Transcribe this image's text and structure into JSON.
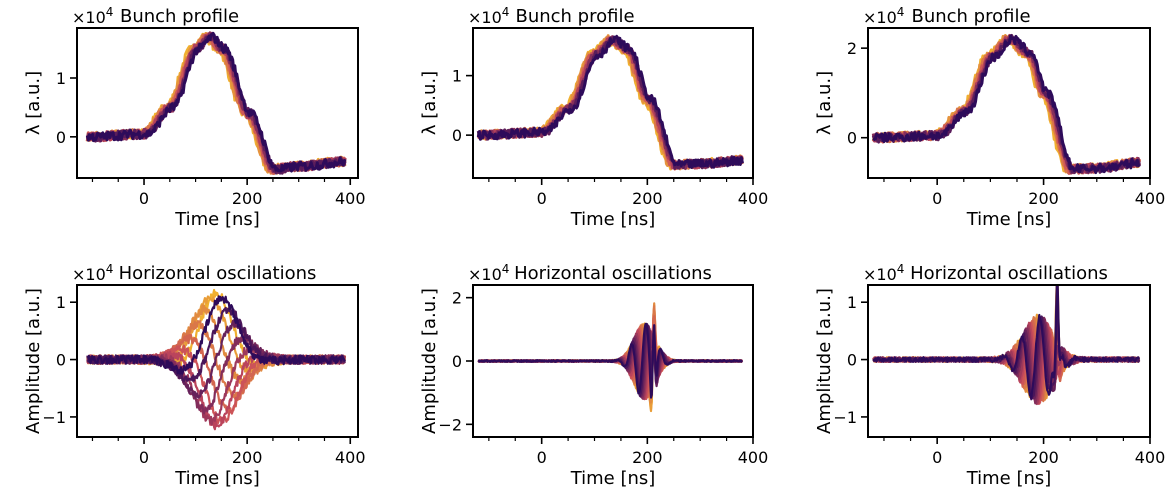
{
  "colors": {
    "palette_start": "#f0b030",
    "palette_mid": "#c84a5c",
    "palette_end": "#2e0b5a",
    "axis": "#000000"
  },
  "chart_data": [
    {
      "type": "line",
      "title": "Bunch profile",
      "xlabel": "Time [ns]",
      "ylabel": "λ [a.u.]",
      "multiplier": "×10",
      "multiplier_exp": "4",
      "xlim": [
        -130,
        415
      ],
      "ylim": [
        -0.7,
        1.85
      ],
      "xticks": [
        0,
        200,
        400
      ],
      "xtick_labels": [
        "0",
        "200",
        "400"
      ],
      "xminor": [
        -100,
        -50,
        50,
        100,
        150,
        250,
        300,
        350
      ],
      "yticks": [
        0,
        1
      ],
      "ytick_labels": [
        "0",
        "1"
      ],
      "x_range": [
        -110,
        390
      ],
      "baseline": 0.0,
      "peak": 1.7,
      "peak_center": 125,
      "peak_width": 65,
      "undershoot": -0.6,
      "tail_level": -0.42,
      "series_count": 8,
      "x": [
        -110,
        0,
        50,
        100,
        125,
        150,
        200,
        250,
        300,
        390
      ],
      "y": [
        0.0,
        0.05,
        0.5,
        1.5,
        1.7,
        1.5,
        0.4,
        -0.55,
        -0.5,
        -0.42
      ]
    },
    {
      "type": "line",
      "title": "Bunch profile",
      "xlabel": "Time [ns]",
      "ylabel": "λ [a.u.]",
      "multiplier": "×10",
      "multiplier_exp": "4",
      "xlim": [
        -130,
        400
      ],
      "ylim": [
        -0.72,
        1.8
      ],
      "xticks": [
        0,
        200,
        400
      ],
      "xtick_labels": [
        "0",
        "200",
        "400"
      ],
      "xminor": [
        -100,
        -50,
        50,
        100,
        150,
        250,
        300,
        350
      ],
      "yticks": [
        0,
        1
      ],
      "ytick_labels": [
        "0",
        "1"
      ],
      "x_range": [
        -120,
        380
      ],
      "baseline": 0.0,
      "peak": 1.6,
      "peak_center": 132,
      "peak_width": 68,
      "undershoot": -0.55,
      "tail_level": -0.42,
      "series_count": 8,
      "x": [
        -120,
        0,
        50,
        100,
        132,
        160,
        200,
        250,
        300,
        380
      ],
      "y": [
        0.0,
        0.05,
        0.45,
        1.35,
        1.6,
        1.45,
        0.6,
        -0.5,
        -0.48,
        -0.42
      ]
    },
    {
      "type": "line",
      "title": "Bunch profile",
      "xlabel": "Time [ns]",
      "ylabel": "λ [a.u.]",
      "multiplier": "×10",
      "multiplier_exp": "4",
      "xlim": [
        -130,
        400
      ],
      "ylim": [
        -0.9,
        2.45
      ],
      "xticks": [
        0,
        200,
        400
      ],
      "xtick_labels": [
        "0",
        "200",
        "400"
      ],
      "xminor": [
        -100,
        -50,
        50,
        100,
        150,
        250,
        300,
        350
      ],
      "yticks": [
        0,
        2
      ],
      "ytick_labels": [
        "0",
        "2"
      ],
      "x_range": [
        -120,
        380
      ],
      "baseline": 0.0,
      "peak": 2.2,
      "peak_center": 135,
      "peak_width": 68,
      "undershoot": -0.75,
      "tail_level": -0.55,
      "series_count": 8,
      "x": [
        -120,
        0,
        50,
        100,
        135,
        170,
        200,
        250,
        300,
        380
      ],
      "y": [
        0.0,
        0.05,
        0.6,
        1.8,
        2.2,
        1.9,
        1.0,
        -0.7,
        -0.68,
        -0.55
      ]
    },
    {
      "type": "line",
      "title": "Horizontal oscillations",
      "xlabel": "Time [ns]",
      "ylabel": "Amplitude [a.u.]",
      "multiplier": "×10",
      "multiplier_exp": "4",
      "xlim": [
        -130,
        415
      ],
      "ylim": [
        -1.35,
        1.3
      ],
      "xticks": [
        0,
        200,
        400
      ],
      "xtick_labels": [
        "0",
        "200",
        "400"
      ],
      "xminor": [
        -100,
        -50,
        50,
        100,
        150,
        250,
        300,
        350
      ],
      "yticks": [
        -1,
        0,
        1
      ],
      "ytick_labels": [
        "−1",
        "0",
        "1"
      ],
      "x_range": [
        -110,
        390
      ],
      "envelope_center": 140,
      "envelope_width": 60,
      "envelope_amplitude": 1.15,
      "oscillation_period": 260,
      "noise_floor": 0.15,
      "series_count": 12
    },
    {
      "type": "line",
      "title": "Horizontal oscillations",
      "xlabel": "Time [ns]",
      "ylabel": "Amplitude [a.u.]",
      "multiplier": "×10",
      "multiplier_exp": "4",
      "xlim": [
        -130,
        400
      ],
      "ylim": [
        -2.4,
        2.4
      ],
      "xticks": [
        0,
        200,
        400
      ],
      "xtick_labels": [
        "0",
        "200",
        "400"
      ],
      "xminor": [
        -100,
        -50,
        50,
        100,
        150,
        250,
        300,
        350
      ],
      "yticks": [
        -2,
        0,
        2
      ],
      "ytick_labels": [
        "−2",
        "0",
        "2"
      ],
      "x_range": [
        -120,
        380
      ],
      "envelope_center": 195,
      "envelope_width": 28,
      "envelope_amplitude": 1.2,
      "spike_time": 212,
      "spike_amplitude": 2.1,
      "oscillation_period": 28,
      "noise_floor": 0.05,
      "series_count": 12
    },
    {
      "type": "line",
      "title": "Horizontal oscillations",
      "xlabel": "Time [ns]",
      "ylabel": "Amplitude [a.u.]",
      "multiplier": "×10",
      "multiplier_exp": "4",
      "xlim": [
        -130,
        400
      ],
      "ylim": [
        -1.35,
        1.3
      ],
      "xticks": [
        0,
        200,
        400
      ],
      "xtick_labels": [
        "0",
        "200",
        "400"
      ],
      "xminor": [
        -100,
        -50,
        50,
        100,
        150,
        250,
        300,
        350
      ],
      "yticks": [
        -1,
        0,
        1
      ],
      "ytick_labels": [
        "−1",
        "0",
        "1"
      ],
      "x_range": [
        -120,
        380
      ],
      "envelope_center": 190,
      "envelope_width": 40,
      "envelope_amplitude": 0.75,
      "spike_time": 225,
      "spike_amplitude": 1.2,
      "oscillation_period": 35,
      "noise_floor": 0.08,
      "series_count": 12
    }
  ]
}
